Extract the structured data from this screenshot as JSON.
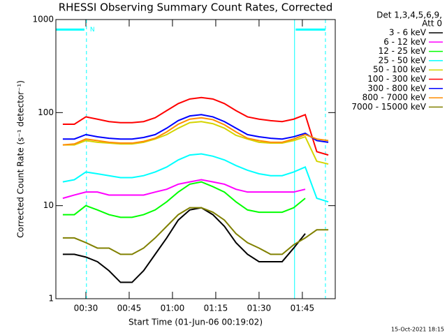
{
  "chart_data": {
    "type": "line",
    "title": "RHESSI Observing Summary Count Rates, Corrected",
    "xlabel": "Start Time (01-Jun-06 00:19:02)",
    "ylabel": "Corrected Count Rate (s⁻¹ detector⁻¹)",
    "legend_header": [
      "Det 1,3,4,5,6,9,",
      "Att 0"
    ],
    "footer": "15-Oct-2021 18:15",
    "ylog": true,
    "xlim": [
      19.6,
      116.4
    ],
    "ylim": [
      1,
      1000
    ],
    "xticks": [
      {
        "value": 30,
        "label": "00:30"
      },
      {
        "value": 45,
        "label": "00:45"
      },
      {
        "value": 60,
        "label": "01:00"
      },
      {
        "value": 75,
        "label": "01:15"
      },
      {
        "value": 90,
        "label": "01:30"
      },
      {
        "value": 105,
        "label": "01:45"
      }
    ],
    "yticks": [
      1,
      10,
      100,
      1000
    ],
    "markers": {
      "color": "#00ffff",
      "solid": [
        102.3
      ],
      "dashed": [
        30.2,
        113
      ]
    },
    "night_bars": {
      "label": "N",
      "color": "#00ffff",
      "y": 780,
      "ranges": [
        [
          19.6,
          29.5
        ],
        [
          102.7,
          113
        ]
      ]
    },
    "x": [
      22,
      26,
      30,
      34,
      38,
      42,
      46,
      50,
      54,
      58,
      62,
      66,
      70,
      74,
      78,
      82,
      86,
      90,
      94,
      98,
      102,
      106,
      110,
      114
    ],
    "series": [
      {
        "name": "3 - 6 keV",
        "color": "#000000",
        "values": [
          3,
          3,
          2.8,
          2.5,
          2,
          1.5,
          1.5,
          2,
          3,
          4.5,
          7,
          9,
          9.5,
          8,
          6,
          4,
          3,
          2.5,
          2.5,
          2.5,
          3.5,
          5,
          null,
          null
        ]
      },
      {
        "name": "6 - 12 keV",
        "color": "#ff00ff",
        "values": [
          12,
          13,
          14,
          14,
          13,
          13,
          13,
          13,
          14,
          15,
          17,
          18,
          19,
          18,
          17,
          15,
          14,
          14,
          14,
          14,
          14,
          15,
          null,
          null
        ]
      },
      {
        "name": "12 - 25 keV",
        "color": "#00ff00",
        "values": [
          8,
          8,
          10,
          9,
          8,
          7.5,
          7.5,
          8,
          9,
          11,
          14,
          17,
          18,
          16,
          14,
          11,
          9,
          8.5,
          8.5,
          8.5,
          9.5,
          12,
          null,
          null
        ]
      },
      {
        "name": "25 - 50 keV",
        "color": "#00ffff",
        "values": [
          18,
          19,
          23,
          22,
          21,
          20,
          20,
          21,
          23,
          26,
          31,
          35,
          36,
          34,
          31,
          27,
          24,
          22,
          21,
          21,
          23,
          26,
          12,
          11
        ]
      },
      {
        "name": "50 - 100 keV",
        "color": "#d4d400",
        "values": [
          45,
          45,
          50,
          48,
          47,
          46,
          46,
          48,
          52,
          58,
          68,
          78,
          80,
          76,
          68,
          57,
          52,
          48,
          47,
          47,
          50,
          55,
          30,
          28
        ]
      },
      {
        "name": "100 - 300 keV",
        "color": "#ff0000",
        "values": [
          75,
          75,
          90,
          85,
          80,
          78,
          78,
          80,
          88,
          105,
          125,
          140,
          145,
          140,
          125,
          105,
          90,
          85,
          82,
          80,
          85,
          95,
          38,
          35
        ]
      },
      {
        "name": "300 - 800 keV",
        "color": "#0000ff",
        "values": [
          52,
          52,
          58,
          55,
          53,
          52,
          52,
          54,
          58,
          68,
          82,
          92,
          95,
          90,
          80,
          68,
          58,
          55,
          53,
          52,
          55,
          60,
          50,
          48
        ]
      },
      {
        "name": "800 - 7000 keV",
        "color": "#ff8c00",
        "values": [
          45,
          46,
          52,
          50,
          48,
          47,
          47,
          49,
          53,
          62,
          75,
          85,
          88,
          84,
          74,
          62,
          53,
          50,
          48,
          48,
          52,
          58,
          52,
          50
        ]
      },
      {
        "name": "7000 - 15000 keV",
        "color": "#808000",
        "values": [
          4.5,
          4.5,
          4,
          3.5,
          3.5,
          3,
          3,
          3.5,
          4.5,
          6,
          8,
          9.5,
          9.5,
          8.5,
          7,
          5,
          4,
          3.5,
          3,
          3,
          3.8,
          4.5,
          5.5,
          5.5
        ]
      }
    ]
  }
}
